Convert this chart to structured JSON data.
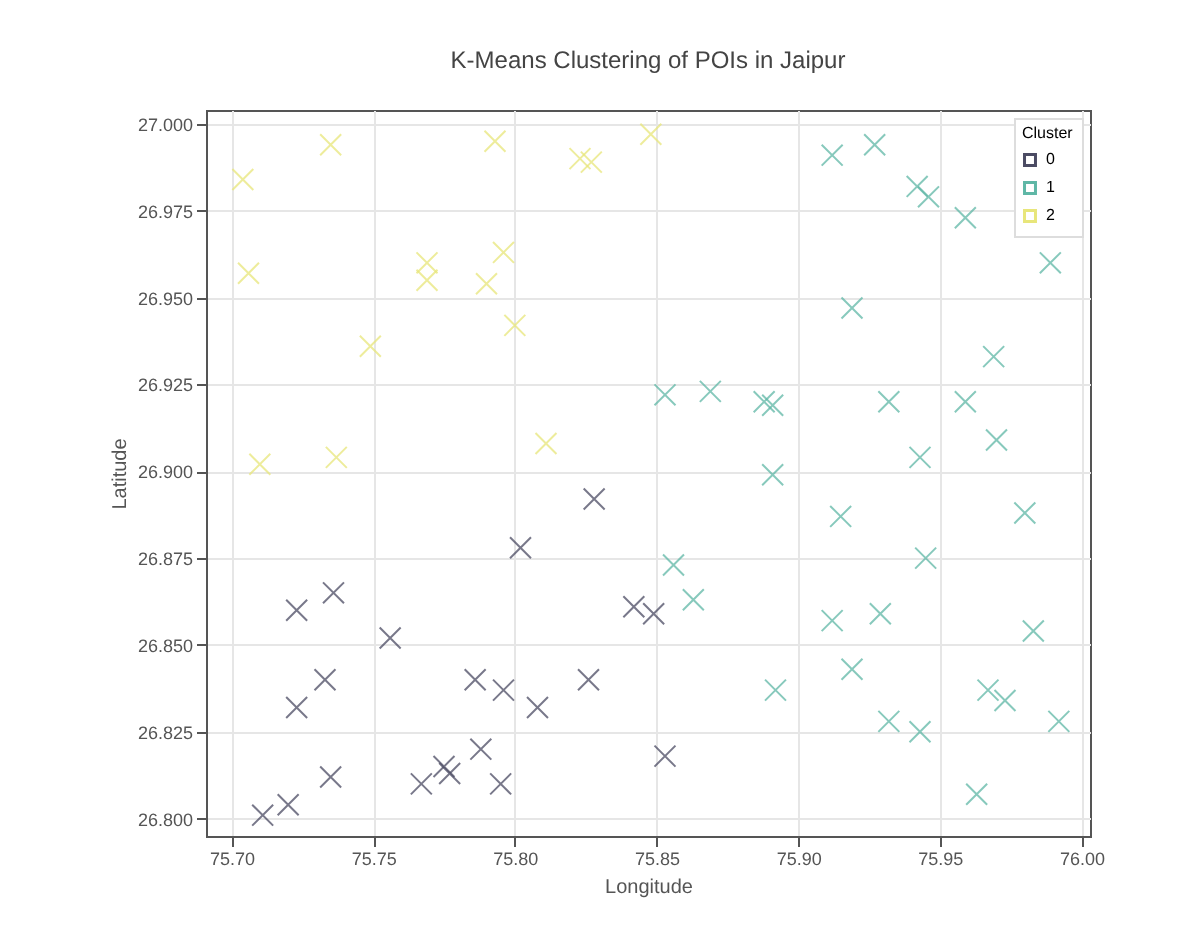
{
  "chart_data": {
    "type": "scatter",
    "title": "K-Means Clustering of POIs in Jaipur",
    "xlabel": "Longitude",
    "ylabel": "Latitude",
    "legend_title": "Cluster",
    "legend": "top right",
    "grid": true,
    "marker": "cross",
    "xlim": [
      75.691,
      76.003
    ],
    "ylim": [
      26.795,
      27.004
    ],
    "xticks": [
      {
        "value": 75.7,
        "label": "75.70"
      },
      {
        "value": 75.75,
        "label": "75.75"
      },
      {
        "value": 75.8,
        "label": "75.80"
      },
      {
        "value": 75.85,
        "label": "75.85"
      },
      {
        "value": 75.9,
        "label": "75.90"
      },
      {
        "value": 75.95,
        "label": "75.95"
      },
      {
        "value": 76,
        "label": "76.00"
      }
    ],
    "yticks": [
      {
        "value": 26.8,
        "label": "26.800"
      },
      {
        "value": 26.825,
        "label": "26.825"
      },
      {
        "value": 26.85,
        "label": "26.850"
      },
      {
        "value": 26.875,
        "label": "26.875"
      },
      {
        "value": 26.9,
        "label": "26.900"
      },
      {
        "value": 26.925,
        "label": "26.925"
      },
      {
        "value": 26.95,
        "label": "26.950"
      },
      {
        "value": 26.975,
        "label": "26.975"
      },
      {
        "value": 27,
        "label": "27.000"
      }
    ],
    "series": [
      {
        "name": "0",
        "color": "#4b4b63",
        "x": [
          75.711,
          75.72,
          75.723,
          75.723,
          75.733,
          75.736,
          75.735,
          75.756,
          75.767,
          75.775,
          75.777,
          75.786,
          75.788,
          75.796,
          75.795,
          75.802,
          75.808,
          75.826,
          75.828,
          75.842,
          75.849,
          75.853
        ],
        "values": [
          26.801,
          26.804,
          26.86,
          26.832,
          26.84,
          26.865,
          26.812,
          26.852,
          26.81,
          26.815,
          26.813,
          26.84,
          26.82,
          26.837,
          26.81,
          26.878,
          26.832,
          26.84,
          26.892,
          26.861,
          26.859,
          26.818
        ]
      },
      {
        "name": "1",
        "color": "#5fb7a6",
        "x": [
          75.856,
          75.863,
          75.891,
          75.892,
          75.912,
          75.915,
          75.919,
          75.929,
          75.932,
          75.943,
          75.943,
          75.945,
          75.963,
          75.967,
          75.973,
          75.97,
          75.98,
          75.983,
          75.992,
          75.912,
          75.927,
          75.942,
          75.946,
          75.959,
          75.989,
          75.919,
          75.969,
          75.853,
          75.869,
          75.888,
          75.891,
          75.932,
          75.959
        ],
        "values": [
          26.873,
          26.863,
          26.899,
          26.837,
          26.857,
          26.887,
          26.843,
          26.859,
          26.828,
          26.825,
          26.904,
          26.875,
          26.807,
          26.837,
          26.834,
          26.909,
          26.888,
          26.854,
          26.828,
          26.991,
          26.994,
          26.982,
          26.979,
          26.973,
          26.96,
          26.947,
          26.933,
          26.922,
          26.923,
          26.92,
          26.919,
          26.92,
          26.92
        ]
      },
      {
        "name": "2",
        "color": "#e8e67a",
        "x": [
          75.704,
          75.706,
          75.735,
          75.793,
          75.823,
          75.827,
          75.848,
          75.769,
          75.769,
          75.79,
          75.796,
          75.8,
          75.749,
          75.71,
          75.737,
          75.811
        ],
        "values": [
          26.984,
          26.957,
          26.994,
          26.995,
          26.99,
          26.989,
          26.997,
          26.96,
          26.955,
          26.954,
          26.963,
          26.942,
          26.936,
          26.902,
          26.904,
          26.908
        ]
      }
    ]
  }
}
